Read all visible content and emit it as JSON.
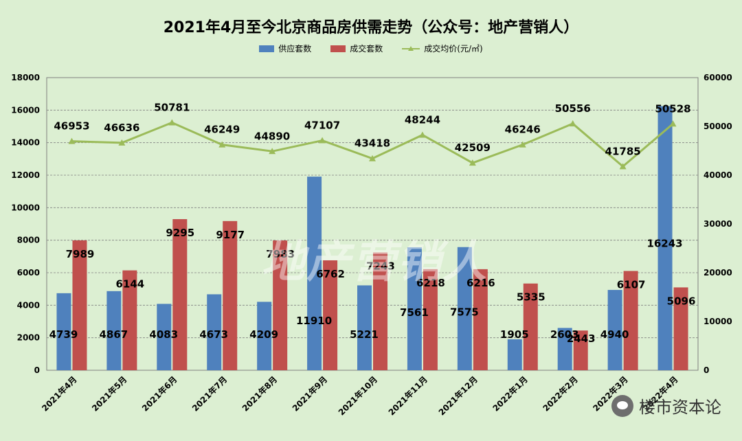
{
  "title": "2021年4月至今北京商品房供需走势（公众号：地产营销人）",
  "watermark": "地产营销人",
  "brand": "楼市资本论",
  "colors": {
    "supply": "#4f81bd",
    "deal": "#c0504d",
    "price": "#9bbb59",
    "background": "#dcefd2",
    "grid": "#7f7f7f"
  },
  "chart_data": {
    "type": "bar",
    "categories": [
      "2021年4月",
      "2021年5月",
      "2021年6月",
      "2021年7月",
      "2021年8月",
      "2021年9月",
      "2021年10月",
      "2021年11月",
      "2021年12月",
      "2022年1月",
      "2022年2月",
      "2022年3月",
      "2022年4月"
    ],
    "series": [
      {
        "name": "供应套数",
        "type": "bar",
        "axis": "left",
        "values": [
          4739,
          4867,
          4083,
          4673,
          4209,
          11910,
          5221,
          7561,
          7575,
          1905,
          2603,
          4940,
          16243
        ]
      },
      {
        "name": "成交套数",
        "type": "bar",
        "axis": "left",
        "values": [
          7989,
          6144,
          9295,
          9177,
          7983,
          6762,
          7243,
          6218,
          6216,
          5335,
          2443,
          6107,
          5096
        ]
      },
      {
        "name": "成交均价(元/㎡)",
        "type": "line",
        "axis": "right",
        "values": [
          46953,
          46636,
          50781,
          46249,
          44890,
          47107,
          43418,
          48244,
          42509,
          46246,
          50556,
          41785,
          50528
        ]
      }
    ],
    "ylim_left": [
      0,
      18000
    ],
    "ylim_right": [
      0,
      60000
    ],
    "yticks_left": [
      "0",
      "2000",
      "4000",
      "6000",
      "8000",
      "10000",
      "12000",
      "14000",
      "16000",
      "18000"
    ],
    "yticks_right": [
      "0",
      "10000",
      "20000",
      "30000",
      "40000",
      "50000",
      "60000"
    ],
    "grid": true,
    "legend_position": "top"
  }
}
